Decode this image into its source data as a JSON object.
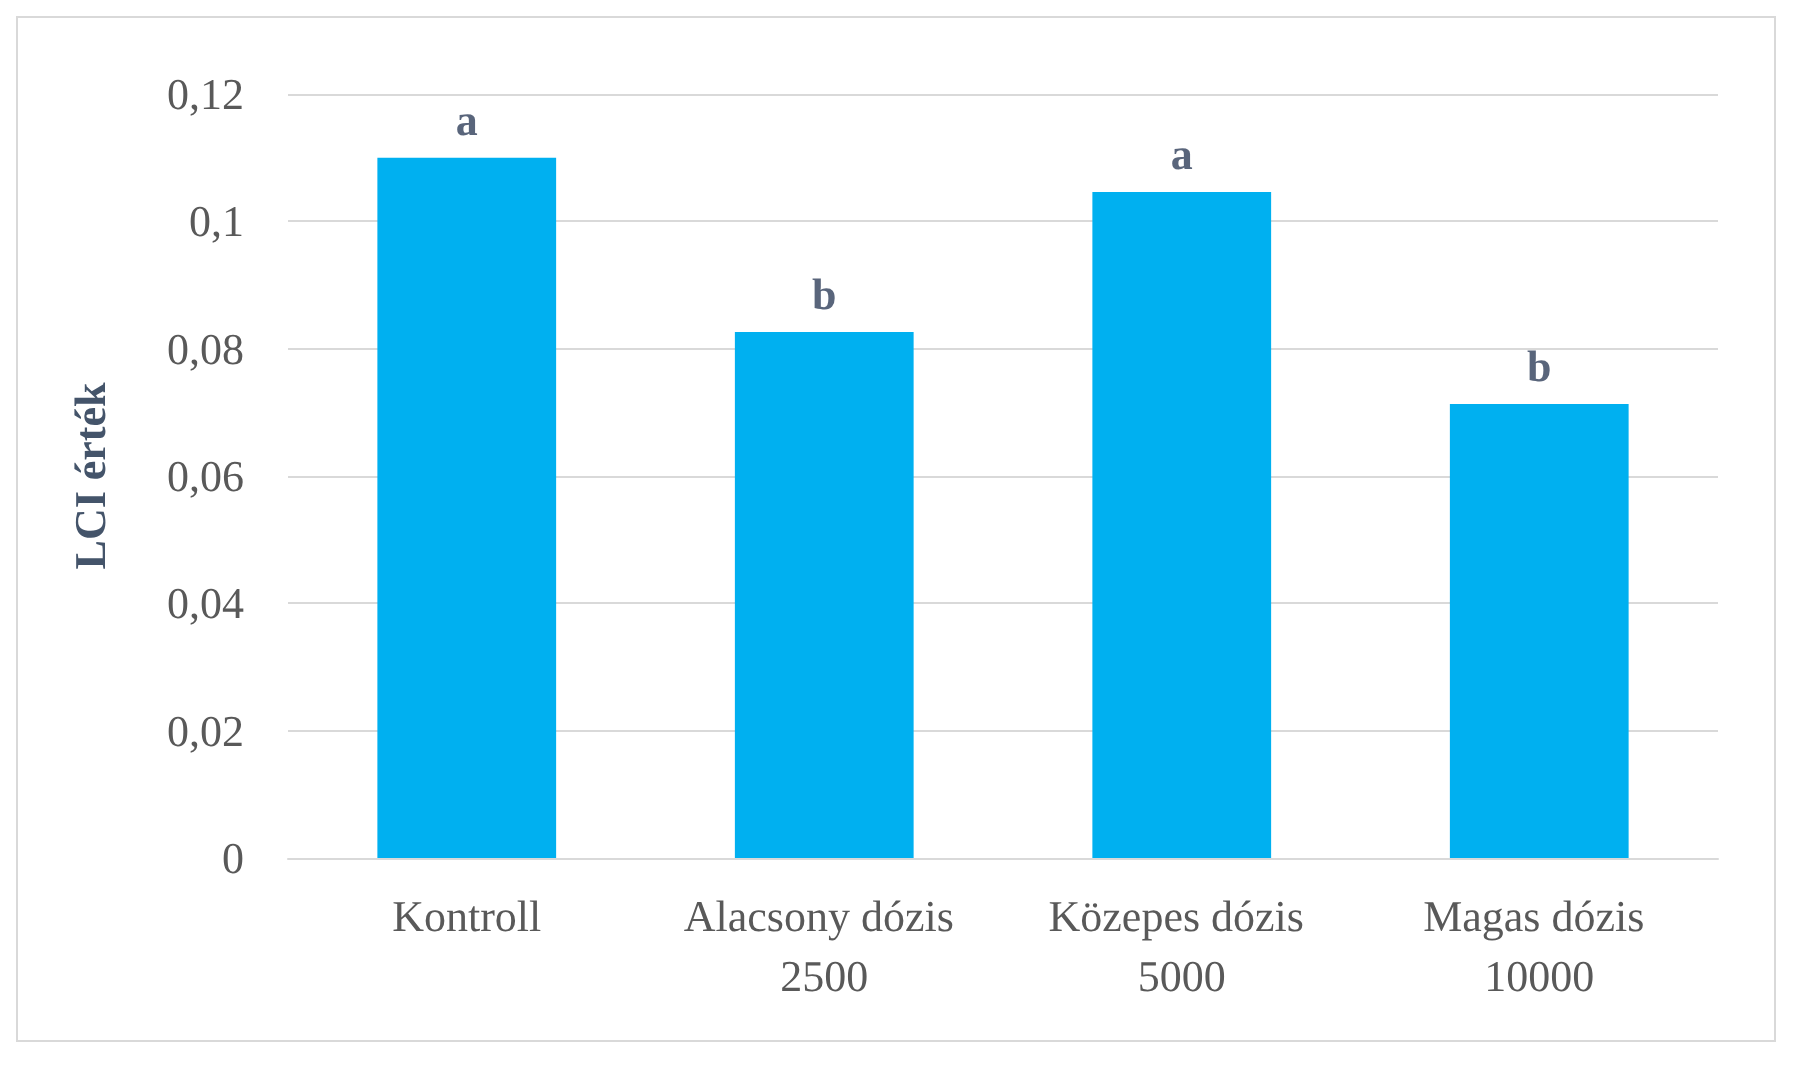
{
  "chart_data": {
    "type": "bar",
    "ylabel": "LCI érték",
    "categories": [
      "Kontroll",
      "Alacsony dózis 2500",
      "Közepes dózis 5000",
      "Magas dózis 10000"
    ],
    "values": [
      0.11,
      0.0826,
      0.1046,
      0.0713
    ],
    "color": "#00b0f0",
    "ylim": [
      0,
      0.12
    ],
    "yticks": [
      0,
      {
        "value": 0.02,
        "label": "0,02"
      },
      {
        "value": 0.04,
        "label": "0,04"
      },
      {
        "value": 0.06,
        "label": "0,06"
      },
      {
        "value": 0.08,
        "label": "0,08"
      },
      {
        "value": 0.1,
        "label": "0,1"
      },
      {
        "value": 0.12,
        "label": "0,12"
      }
    ],
    "grid": "y",
    "annotations": [
      {
        "text": "a",
        "x": "Kontroll",
        "y": 0.11
      },
      {
        "text": "b",
        "x": "Alacsony dózis 2500",
        "y": 0.0826
      },
      {
        "text": "a",
        "x": "Közepes dózis 5000",
        "y": 0.1046
      },
      {
        "text": "b",
        "x": "Magas dózis 10000",
        "y": 0.0713
      }
    ]
  }
}
